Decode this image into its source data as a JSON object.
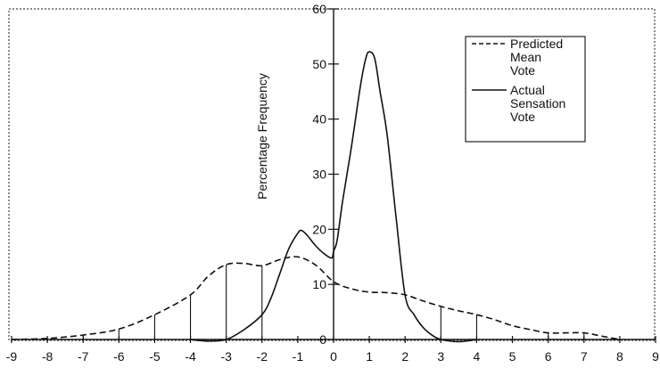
{
  "chart_data": {
    "type": "line",
    "title": "",
    "xlabel": "",
    "ylabel": "Percentage Frequency",
    "xlim": [
      -9,
      9
    ],
    "ylim": [
      0,
      60
    ],
    "x_ticks": [
      -9,
      -8,
      -7,
      -6,
      -5,
      -4,
      -3,
      -2,
      -1,
      0,
      1,
      2,
      3,
      4,
      5,
      6,
      7,
      8,
      9
    ],
    "y_ticks": [
      0,
      10,
      20,
      30,
      40,
      50,
      60
    ],
    "grid": false,
    "legend_position": "upper right",
    "series": [
      {
        "name": "Predicted Mean Vote",
        "style": "dashed",
        "color": "#111111",
        "drop_lines_at": [
          -8,
          -7,
          -6,
          -5,
          -4,
          -3,
          -2,
          3,
          4,
          6,
          7
        ],
        "x": [
          -9,
          -8,
          -7,
          -6,
          -5,
          -4,
          -3.5,
          -3,
          -2.5,
          -2,
          -1.5,
          -1,
          -0.5,
          0,
          0.5,
          1,
          1.5,
          2,
          2.5,
          3,
          3.5,
          4,
          4.5,
          5,
          5.5,
          6,
          6.5,
          7,
          7.5,
          8
        ],
        "y": [
          0,
          0.2,
          0.8,
          1.9,
          4.5,
          8.1,
          11.5,
          13.6,
          13.8,
          13.4,
          14.5,
          15.0,
          13.5,
          10.5,
          9.2,
          8.6,
          8.5,
          8.1,
          7.0,
          6.0,
          5.2,
          4.5,
          3.6,
          2.5,
          1.8,
          1.2,
          1.2,
          1.2,
          0.6,
          0
        ]
      },
      {
        "name": "Actual Sensation Vote",
        "style": "solid",
        "color": "#111111",
        "x": [
          -4,
          -3.5,
          -3,
          -2.5,
          -2,
          -1.75,
          -1.5,
          -1.25,
          -1,
          -0.9,
          -0.75,
          -0.5,
          -0.25,
          -0.05,
          0,
          0.1,
          0.25,
          0.5,
          0.75,
          0.9,
          1,
          1.15,
          1.3,
          1.5,
          1.75,
          2,
          2.25,
          2.5,
          2.75,
          3,
          3.5,
          4
        ],
        "y": [
          0,
          -0.3,
          0,
          1.8,
          4.5,
          7.5,
          12.0,
          16.5,
          19.3,
          19.8,
          19.0,
          17.0,
          15.5,
          14.8,
          16.0,
          18.0,
          25.0,
          35.0,
          46.0,
          51.0,
          52.2,
          51.0,
          45.0,
          37.0,
          22.0,
          8.0,
          4.5,
          2.2,
          0.8,
          0,
          -0.4,
          0
        ]
      }
    ]
  },
  "legend": {
    "items": [
      {
        "lines": [
          "Predicted",
          "Mean",
          "Vote"
        ],
        "style": "dashed"
      },
      {
        "lines": [
          "Actual",
          "Sensation",
          "Vote"
        ],
        "style": "solid"
      }
    ]
  }
}
